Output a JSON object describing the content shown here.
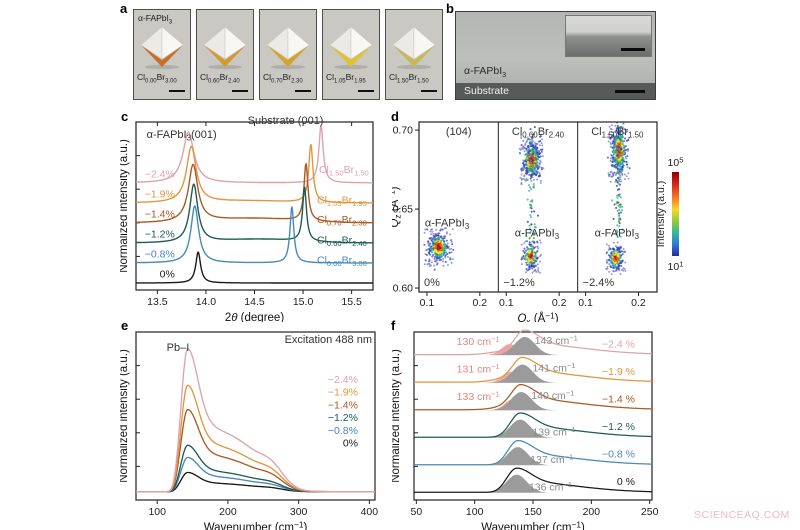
{
  "watermark": {
    "text": "SCIENCEAQ.COM",
    "color": "#f2b9bc"
  },
  "panel_a": {
    "letter": "a",
    "phase_label": "α-FAPbI_{3}",
    "tiles": [
      {
        "formula": "Cl_{0.00}Br_{3.00}",
        "accent": "#c96f2a"
      },
      {
        "formula": "Cl_{0.60}Br_{2.40}",
        "accent": "#d29a33"
      },
      {
        "formula": "Cl_{0.70}Br_{2.30}",
        "accent": "#d3a52e"
      },
      {
        "formula": "Cl_{1.05}Br_{1.95}",
        "accent": "#e0c22e"
      },
      {
        "formula": "Cl_{1.50}Br_{1.50}",
        "accent": "#c4b952"
      }
    ]
  },
  "panel_b": {
    "letter": "b",
    "film_label": "α-FAPbI_{3}",
    "substrate_label": "Substrate"
  },
  "chart_data": [
    {
      "id": "xrd",
      "type": "line",
      "letter": "c",
      "xlabel": "2*θ* (degree)",
      "ylabel": "Normalized intensity (a.u.)",
      "xlim": [
        13.28,
        15.72
      ],
      "ylim": [
        -0.35,
        8.05
      ],
      "xticks": [
        13.5,
        14.0,
        14.5,
        15.0,
        15.5
      ],
      "annotations": [
        {
          "text": "α-FAPbI_{3}(001)",
          "x": 13.75,
          "y": 7.25,
          "color": "#333"
        },
        {
          "text": "Substrate (001)",
          "x": 14.82,
          "y": 7.95,
          "color": "#333"
        }
      ],
      "series": [
        {
          "strain": "0%",
          "color": "#1a1a1a",
          "offset": 0,
          "peaks": [
            {
              "c": 13.92,
              "h": 1.55,
              "w": 0.03
            }
          ],
          "comp": null
        },
        {
          "strain": "−0.8%",
          "color": "#4789b8",
          "offset": 1,
          "peaks": [
            {
              "c": 13.885,
              "h": 2.85,
              "w": 0.048
            },
            {
              "c": 14.885,
              "h": 2.8,
              "w": 0.024
            }
          ],
          "comp": "Cl_{0.00}Br_{3.00}",
          "comp_x": 15.4,
          "comp_dy": 0.18
        },
        {
          "strain": "−1.2%",
          "color": "#1d5b55",
          "offset": 2,
          "peaks": [
            {
              "c": 13.875,
              "h": 2.9,
              "w": 0.05
            },
            {
              "c": 15.015,
              "h": 2.7,
              "w": 0.024
            }
          ],
          "hump": {
            "c": 14.55,
            "h": 0.18,
            "s": 0.4
          },
          "comp": "Cl_{0.60}Br_{2.40}",
          "comp_x": 15.4,
          "comp_dy": 0.18
        },
        {
          "strain": "−1.4%",
          "color": "#ab5a22",
          "offset": 3,
          "peaks": [
            {
              "c": 13.868,
              "h": 2.85,
              "w": 0.058
            },
            {
              "c": 15.03,
              "h": 2.85,
              "w": 0.025
            }
          ],
          "hump": {
            "c": 14.5,
            "h": 0.22,
            "s": 0.45
          },
          "comp": "Cl_{0.70}Br_{2.30}",
          "comp_x": 15.4,
          "comp_dy": 0.2
        },
        {
          "strain": "−1.9%",
          "color": "#e2953f",
          "offset": 4,
          "peaks": [
            {
              "c": 13.85,
              "h": 2.8,
              "w": 0.06
            },
            {
              "c": 15.08,
              "h": 2.9,
              "w": 0.026
            }
          ],
          "hump": {
            "c": 14.45,
            "h": 0.1,
            "s": 0.4
          },
          "comp": "Cl_{1.05}Br_{1.95}",
          "comp_x": 15.4,
          "comp_dy": 0.18
        },
        {
          "strain": "−2.4%",
          "color": "#dda3ab",
          "offset": 5,
          "peaks": [
            {
              "c": 13.82,
              "h": 2.55,
              "w": 0.068
            },
            {
              "c": 15.185,
              "h": 2.85,
              "w": 0.027
            }
          ],
          "comp": "Cl_{1.50}Br_{1.50}",
          "comp_x": 15.42,
          "comp_dy": 0.7
        }
      ]
    },
    {
      "id": "rsm",
      "type": "heatmap-scatter",
      "letter": "d",
      "xlabel": "*Q*_{x} (Å^{−1})",
      "ylabel": "*Q*_{z} (Å^{−1})",
      "xlim": [
        0.085,
        0.235
      ],
      "ylim": [
        0.5975,
        0.7051
      ],
      "xticks": [
        0.1,
        0.2
      ],
      "yticks": [
        0.6,
        0.65,
        0.7
      ],
      "colorbar": {
        "label": "Intensity (a.u.)",
        "top": "10^{5}",
        "bottom": "10^{1}"
      },
      "panels": [
        {
          "tag": "0%",
          "title": "(104)",
          "film_label": "α-FAPbI_{3}",
          "film_xy": [
            0.138,
            0.639
          ],
          "blobs": [
            {
              "x": 0.122,
              "z": 0.626,
              "sx": 0.0085,
              "sz": 0.0038,
              "n": 280,
              "seed": 7
            }
          ],
          "streaks": []
        },
        {
          "tag": "−1.2%",
          "title": "Cl_{0.60}Br_{2.40}",
          "film_label": "α-FAPbI_{3}",
          "film_xy": [
            0.158,
            0.6325
          ],
          "blobs": [
            {
              "x": 0.148,
              "z": 0.681,
              "sx": 0.007,
              "sz": 0.0048,
              "n": 330,
              "seed": 11
            },
            {
              "x": 0.146,
              "z": 0.62,
              "sx": 0.0062,
              "sz": 0.0033,
              "n": 170,
              "seed": 23
            }
          ],
          "streaks": [
            {
              "x": 0.148,
              "sx": 0.0042,
              "z0": 0.626,
              "z1": 0.704,
              "n": 80,
              "seed": 31
            }
          ]
        },
        {
          "tag": "−2.4%",
          "title": "Cl_{1.50}Br_{1.50}",
          "film_label": "α-FAPbI_{3}",
          "film_xy": [
            0.159,
            0.6325
          ],
          "blobs": [
            {
              "x": 0.163,
              "z": 0.687,
              "sx": 0.0062,
              "sz": 0.0062,
              "n": 340,
              "seed": 41
            },
            {
              "x": 0.157,
              "z": 0.619,
              "sx": 0.0058,
              "sz": 0.0032,
              "n": 160,
              "seed": 53
            }
          ],
          "streaks": [
            {
              "x": 0.162,
              "sx": 0.0045,
              "z0": 0.632,
              "z1": 0.705,
              "n": 100,
              "seed": 61
            }
          ]
        }
      ]
    },
    {
      "id": "raman",
      "type": "line",
      "letter": "e",
      "xlabel": "Wavenumber (cm^{−1})",
      "ylabel": "Normalized intensity (a.u.)",
      "xlim": [
        70,
        408
      ],
      "ylim": [
        -0.03,
        1.15
      ],
      "xticks": [
        100,
        200,
        300,
        400
      ],
      "annotation": "Excitation 488 nm",
      "peak_label": "Pb–I",
      "peak_center": 143,
      "series": [
        {
          "strain": "−2.4%",
          "color": "#dda3ab",
          "height": 1.0
        },
        {
          "strain": "−1.9%",
          "color": "#e2953f",
          "height": 0.745
        },
        {
          "strain": "−1.4%",
          "color": "#ab5a22",
          "height": 0.575
        },
        {
          "strain": "−1.2%",
          "color": "#1d5b55",
          "height": 0.325
        },
        {
          "strain": "−0.8%",
          "color": "#4789b8",
          "height": 0.24
        },
        {
          "strain": "0%",
          "color": "#1a1a1a",
          "height": 0.135
        }
      ]
    },
    {
      "id": "phonon",
      "type": "line",
      "letter": "f",
      "xlabel": "Wavenumber (cm^{−1})",
      "ylabel": "Normalized intensity (a.u.)",
      "xlim": [
        48,
        252
      ],
      "ylim": [
        -0.25,
        5.85
      ],
      "xticks": [
        50,
        100,
        150,
        200,
        250
      ],
      "gray_fill": "#9b9b9b",
      "pink_fill": "#f2a6a4",
      "pink_text": "#e2857f",
      "traces": [
        {
          "strain": "0 %",
          "color": "#1a1a1a",
          "offset": 0,
          "peak": 136,
          "gray_label": "136 cm^{−1}"
        },
        {
          "strain": "−0.8 %",
          "color": "#4789b8",
          "offset": 1,
          "peak": 137,
          "gray_label": "137 cm^{−1}"
        },
        {
          "strain": "−1.2 %",
          "color": "#1d5b55",
          "offset": 2,
          "peak": 139,
          "gray_label": "139 cm^{−1}"
        },
        {
          "strain": "−1.4 %",
          "color": "#ab5a22",
          "offset": 3,
          "peak": 140,
          "gray_label": "140 cm^{−1}",
          "pink_peak": 133,
          "pink_label": "133 cm^{−1}"
        },
        {
          "strain": "−1.9 %",
          "color": "#e2953f",
          "offset": 4,
          "peak": 141,
          "gray_label": "141 cm^{−1}",
          "pink_peak": 131,
          "pink_label": "131 cm^{−1}"
        },
        {
          "strain": "−2.4 %",
          "color": "#dda3ab",
          "offset": 5,
          "peak": 143,
          "gray_label": "143 cm^{−1}",
          "pink_peak": 130,
          "pink_label": "130 cm^{−1}"
        }
      ]
    }
  ]
}
